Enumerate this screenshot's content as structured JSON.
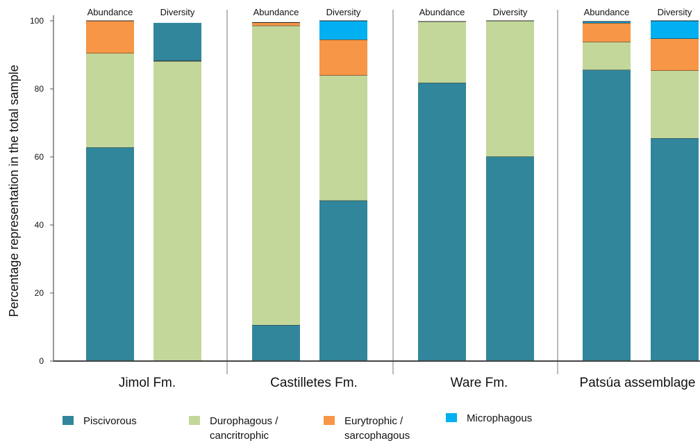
{
  "chart_data": {
    "type": "bar",
    "stacked": true,
    "ylabel": "Percentage representation in the total sample",
    "ylim": [
      0,
      100
    ],
    "yticks": [
      0,
      20,
      40,
      60,
      80,
      100
    ],
    "groups": [
      {
        "name": "Jimol Fm.",
        "categories": [
          "Abundance",
          "Diversity"
        ]
      },
      {
        "name": "Castilletes Fm.",
        "categories": [
          "Abundance",
          "Diversity"
        ]
      },
      {
        "name": "Ware Fm.",
        "categories": [
          "Abundance",
          "Diversity"
        ]
      },
      {
        "name": "Patsúa assemblage",
        "categories": [
          "Abundance",
          "Diversity"
        ]
      }
    ],
    "series": [
      {
        "name": "Piscivorous",
        "color": "#31869b",
        "values": [
          62.8,
          0,
          10.6,
          47.2,
          81.8,
          60.1,
          85.6,
          65.5
        ]
      },
      {
        "name": "Durophagous / cancritrophic",
        "color": "#c4d79b",
        "values": [
          27.7,
          88.2,
          88.0,
          36.8,
          18.0,
          39.9,
          8.2,
          19.9
        ]
      },
      {
        "name": "Eurytrophic / sarcophagous",
        "color": "#f79646",
        "values": [
          9.5,
          0.6,
          0.9,
          10.5,
          0,
          0,
          5.6,
          9.4
        ]
      },
      {
        "name": "Microphagous",
        "color": "#00b0f0",
        "values": [
          0,
          0,
          0,
          5.5,
          0,
          0,
          0.4,
          5.2
        ]
      }
    ],
    "extra_segments": [
      {
        "bar_index": 1,
        "series_index": 0,
        "start": 88.2,
        "value": 11.2
      }
    ],
    "grid": false,
    "legend_position": "bottom"
  },
  "legend": [
    {
      "label": "Piscivorous",
      "color": "#31869b"
    },
    {
      "label": "Durophagous /\ncancritrophic",
      "color": "#c4d79b"
    },
    {
      "label": "Eurytrophic /\nsarcophagous",
      "color": "#f79646"
    },
    {
      "label": "Microphagous",
      "color": "#00b0f0"
    }
  ]
}
